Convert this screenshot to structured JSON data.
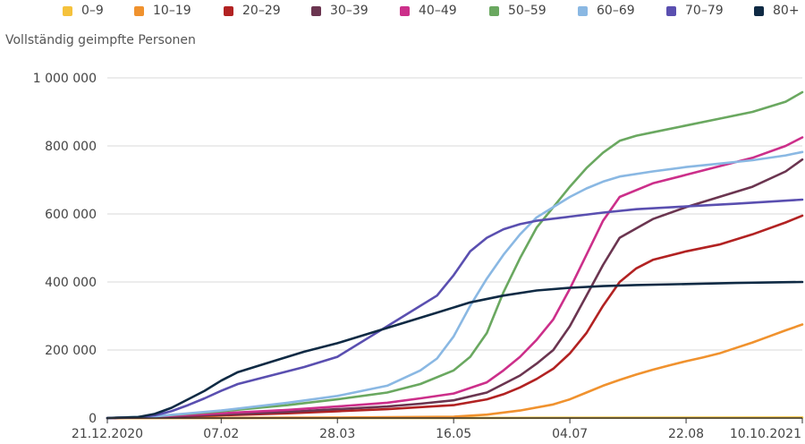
{
  "chart_data": {
    "type": "line",
    "title": "",
    "ylabel": "Vollständig geimpfte Personen",
    "xlabel": "",
    "ylim": [
      0,
      1000000
    ],
    "yticks": [
      0,
      200000,
      400000,
      600000,
      800000,
      1000000
    ],
    "ytick_labels": [
      "0",
      "200 000",
      "400 000",
      "600 000",
      "800 000",
      "1 000 000"
    ],
    "xlim": [
      "2020-12-21",
      "2021-10-10"
    ],
    "xticks": [
      "2020-12-21",
      "2021-02-07",
      "2021-03-28",
      "2021-05-16",
      "2021-07-04",
      "2021-08-22",
      "2021-10-10"
    ],
    "xtick_labels": [
      "21.12.2020",
      "07.02",
      "28.03",
      "16.05",
      "04.07",
      "22.08",
      "10.10.2021"
    ],
    "grid": "horizontal",
    "legend_position": "top",
    "series": [
      {
        "name": "0–9",
        "color": "#f5c23c",
        "x": [
          "2020-12-21",
          "2021-05-16",
          "2021-07-04",
          "2021-10-10"
        ],
        "y": [
          0,
          200,
          800,
          1500
        ]
      },
      {
        "name": "10–19",
        "color": "#f0922e",
        "x": [
          "2020-12-21",
          "2021-02-07",
          "2021-03-28",
          "2021-05-16",
          "2021-05-30",
          "2021-06-13",
          "2021-06-27",
          "2021-07-04",
          "2021-07-11",
          "2021-07-18",
          "2021-07-25",
          "2021-08-01",
          "2021-08-08",
          "2021-08-15",
          "2021-08-22",
          "2021-08-29",
          "2021-09-05",
          "2021-09-12",
          "2021-09-19",
          "2021-09-26",
          "2021-10-03",
          "2021-10-10"
        ],
        "y": [
          0,
          500,
          1500,
          4000,
          10000,
          22000,
          40000,
          55000,
          75000,
          95000,
          112000,
          128000,
          142000,
          155000,
          167000,
          178000,
          190000,
          206000,
          222000,
          240000,
          258000,
          275000
        ]
      },
      {
        "name": "20–29",
        "color": "#b22222",
        "x": [
          "2020-12-21",
          "2021-01-10",
          "2021-02-07",
          "2021-03-07",
          "2021-03-28",
          "2021-04-18",
          "2021-05-02",
          "2021-05-16",
          "2021-05-30",
          "2021-06-06",
          "2021-06-13",
          "2021-06-20",
          "2021-06-27",
          "2021-07-04",
          "2021-07-11",
          "2021-07-18",
          "2021-07-25",
          "2021-08-01",
          "2021-08-08",
          "2021-08-22",
          "2021-09-05",
          "2021-09-19",
          "2021-10-03",
          "2021-10-10"
        ],
        "y": [
          0,
          2000,
          8000,
          14000,
          20000,
          26000,
          32000,
          38000,
          55000,
          70000,
          90000,
          115000,
          145000,
          190000,
          250000,
          330000,
          400000,
          440000,
          465000,
          490000,
          510000,
          540000,
          575000,
          595000
        ]
      },
      {
        "name": "30–39",
        "color": "#6b3550",
        "x": [
          "2020-12-21",
          "2021-01-10",
          "2021-02-07",
          "2021-03-07",
          "2021-03-28",
          "2021-04-18",
          "2021-05-02",
          "2021-05-16",
          "2021-05-30",
          "2021-06-06",
          "2021-06-13",
          "2021-06-20",
          "2021-06-27",
          "2021-07-04",
          "2021-07-11",
          "2021-07-18",
          "2021-07-25",
          "2021-08-08",
          "2021-08-22",
          "2021-09-05",
          "2021-09-19",
          "2021-10-03",
          "2021-10-10"
        ],
        "y": [
          0,
          3000,
          10000,
          18000,
          26000,
          34000,
          42000,
          52000,
          75000,
          100000,
          125000,
          160000,
          200000,
          270000,
          360000,
          450000,
          530000,
          585000,
          620000,
          650000,
          680000,
          725000,
          760000
        ]
      },
      {
        "name": "40–49",
        "color": "#cc2f8a",
        "x": [
          "2020-12-21",
          "2021-01-10",
          "2021-02-07",
          "2021-03-07",
          "2021-03-28",
          "2021-04-18",
          "2021-05-02",
          "2021-05-16",
          "2021-05-30",
          "2021-06-06",
          "2021-06-13",
          "2021-06-20",
          "2021-06-27",
          "2021-07-04",
          "2021-07-11",
          "2021-07-18",
          "2021-07-25",
          "2021-08-08",
          "2021-08-22",
          "2021-09-05",
          "2021-09-19",
          "2021-10-03",
          "2021-10-10"
        ],
        "y": [
          0,
          4000,
          14000,
          24000,
          34000,
          45000,
          58000,
          72000,
          105000,
          140000,
          180000,
          230000,
          290000,
          380000,
          480000,
          580000,
          650000,
          690000,
          715000,
          740000,
          765000,
          800000,
          825000
        ]
      },
      {
        "name": "50–59",
        "color": "#6aa860",
        "x": [
          "2020-12-21",
          "2021-01-10",
          "2021-02-07",
          "2021-03-07",
          "2021-03-28",
          "2021-04-18",
          "2021-05-02",
          "2021-05-16",
          "2021-05-23",
          "2021-05-30",
          "2021-06-06",
          "2021-06-13",
          "2021-06-20",
          "2021-06-27",
          "2021-07-04",
          "2021-07-11",
          "2021-07-18",
          "2021-07-25",
          "2021-08-01",
          "2021-08-08",
          "2021-08-22",
          "2021-09-05",
          "2021-09-19",
          "2021-10-03",
          "2021-10-10"
        ],
        "y": [
          0,
          5000,
          20000,
          38000,
          55000,
          75000,
          100000,
          140000,
          180000,
          250000,
          370000,
          470000,
          560000,
          620000,
          680000,
          735000,
          780000,
          815000,
          830000,
          840000,
          860000,
          880000,
          900000,
          930000,
          958000
        ]
      },
      {
        "name": "60–69",
        "color": "#8ab8e3",
        "x": [
          "2020-12-21",
          "2021-01-10",
          "2021-02-07",
          "2021-03-07",
          "2021-03-28",
          "2021-04-18",
          "2021-05-02",
          "2021-05-09",
          "2021-05-16",
          "2021-05-23",
          "2021-05-30",
          "2021-06-06",
          "2021-06-13",
          "2021-06-20",
          "2021-06-27",
          "2021-07-04",
          "2021-07-11",
          "2021-07-18",
          "2021-07-25",
          "2021-08-08",
          "2021-08-22",
          "2021-09-05",
          "2021-09-19",
          "2021-10-03",
          "2021-10-10"
        ],
        "y": [
          0,
          5000,
          22000,
          45000,
          65000,
          95000,
          140000,
          175000,
          240000,
          330000,
          410000,
          480000,
          540000,
          590000,
          620000,
          650000,
          675000,
          695000,
          710000,
          725000,
          738000,
          748000,
          758000,
          772000,
          782000
        ]
      },
      {
        "name": "70–79",
        "color": "#5a4fb0",
        "x": [
          "2020-12-21",
          "2021-01-03",
          "2021-01-10",
          "2021-01-17",
          "2021-01-24",
          "2021-01-31",
          "2021-02-07",
          "2021-02-14",
          "2021-02-28",
          "2021-03-14",
          "2021-03-28",
          "2021-04-11",
          "2021-04-25",
          "2021-05-09",
          "2021-05-16",
          "2021-05-23",
          "2021-05-30",
          "2021-06-06",
          "2021-06-13",
          "2021-06-20",
          "2021-07-04",
          "2021-07-18",
          "2021-08-01",
          "2021-08-22",
          "2021-09-12",
          "2021-10-10"
        ],
        "y": [
          0,
          2000,
          8000,
          20000,
          38000,
          58000,
          80000,
          100000,
          125000,
          150000,
          180000,
          240000,
          300000,
          360000,
          420000,
          490000,
          530000,
          555000,
          570000,
          580000,
          592000,
          604000,
          614000,
          622000,
          630000,
          642000
        ]
      },
      {
        "name": "80+",
        "color": "#0f2a44",
        "x": [
          "2020-12-21",
          "2021-01-03",
          "2021-01-10",
          "2021-01-17",
          "2021-01-24",
          "2021-01-31",
          "2021-02-07",
          "2021-02-14",
          "2021-02-28",
          "2021-03-14",
          "2021-03-28",
          "2021-04-11",
          "2021-04-25",
          "2021-05-09",
          "2021-05-23",
          "2021-06-06",
          "2021-06-20",
          "2021-07-04",
          "2021-07-18",
          "2021-08-01",
          "2021-08-22",
          "2021-09-12",
          "2021-10-10"
        ],
        "y": [
          0,
          3000,
          12000,
          30000,
          55000,
          80000,
          110000,
          135000,
          165000,
          195000,
          220000,
          250000,
          280000,
          310000,
          340000,
          360000,
          375000,
          383000,
          388000,
          391000,
          394000,
          397000,
          400000
        ]
      }
    ]
  }
}
